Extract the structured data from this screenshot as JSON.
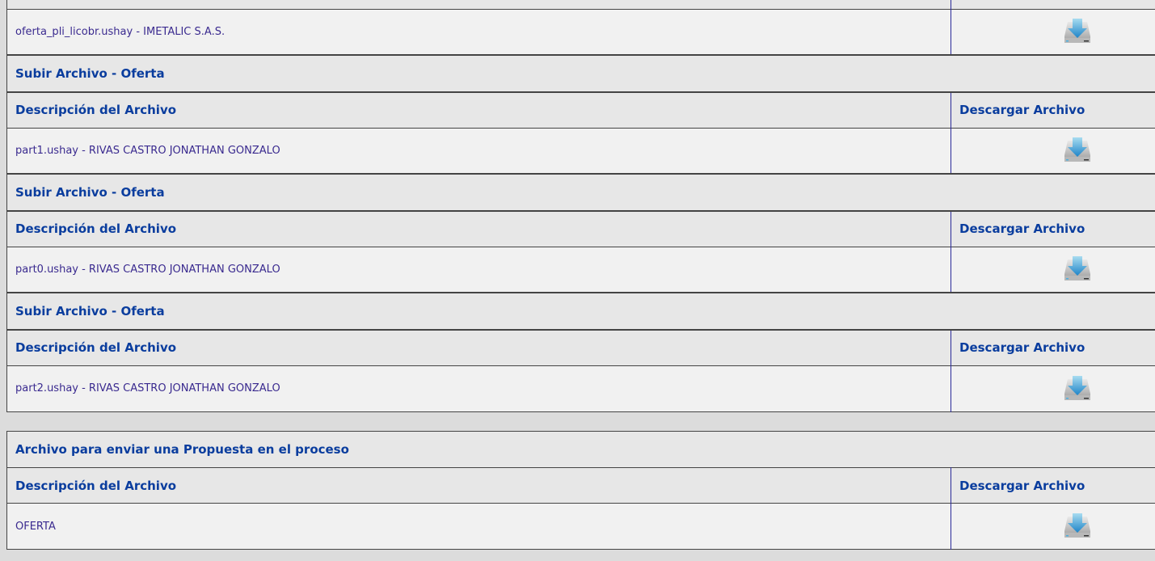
{
  "sections": [
    {
      "file": "oferta_pli_licobr.ushay - IMETALIC S.A.S."
    },
    {
      "title": "Subir Archivo - Oferta",
      "col1": "Descripción del Archivo",
      "col2": "Descargar Archivo",
      "file": "part1.ushay - RIVAS CASTRO JONATHAN GONZALO"
    },
    {
      "title": "Subir Archivo - Oferta",
      "col1": "Descripción del Archivo",
      "col2": "Descargar Archivo",
      "file": "part0.ushay - RIVAS CASTRO JONATHAN GONZALO"
    },
    {
      "title": "Subir Archivo - Oferta",
      "col1": "Descripción del Archivo",
      "col2": "Descargar Archivo",
      "file": "part2.ushay - RIVAS CASTRO JONATHAN GONZALO"
    }
  ],
  "proposal": {
    "title": "Archivo para enviar una Propuesta en el proceso",
    "col1": "Descripción del Archivo",
    "col2": "Descargar Archivo",
    "file": "OFERTA"
  },
  "icons": {
    "download": "download-drive-icon"
  },
  "colors": {
    "link": "#0a3d9e",
    "text": "#3a2a8f"
  }
}
